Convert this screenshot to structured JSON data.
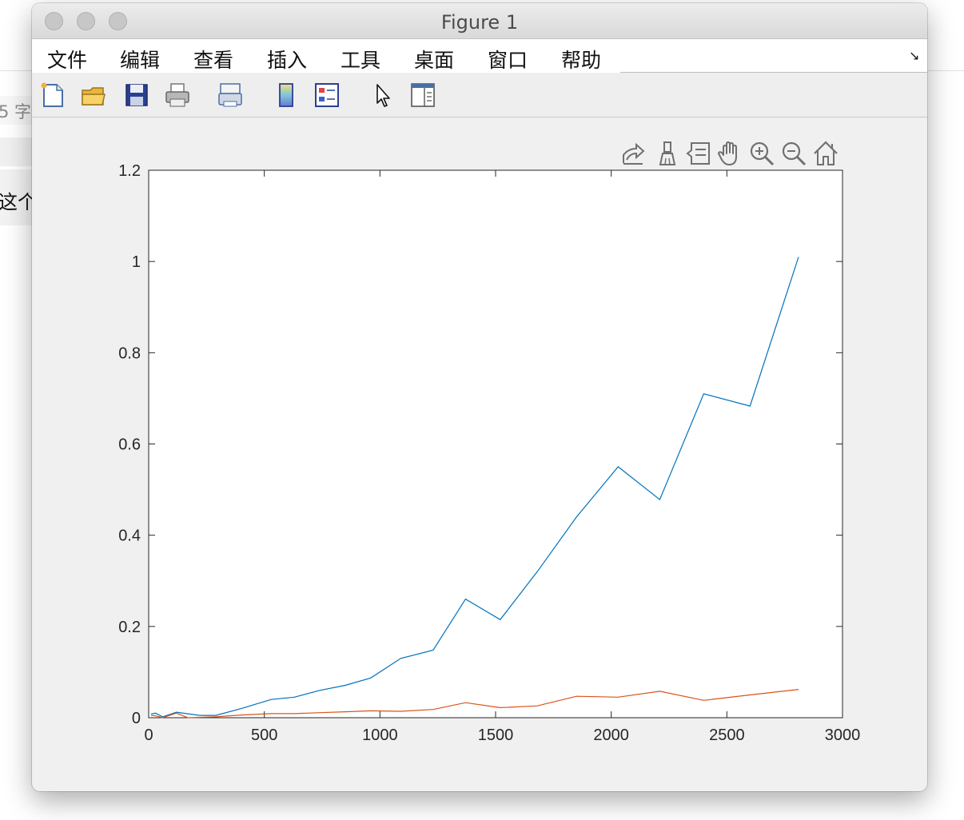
{
  "background": {
    "fragment_1": "5 字",
    "fragment_2": "这个"
  },
  "window": {
    "title": "Figure 1"
  },
  "menu": [
    "文件",
    "编辑",
    "查看",
    "插入",
    "工具",
    "桌面",
    "窗口",
    "帮助"
  ],
  "toolbar_icons": [
    "new-figure-icon",
    "open-file-icon",
    "save-icon",
    "print-icon",
    "link-plot-icon",
    "colorbar-icon",
    "legend-icon",
    "edit-plot-icon",
    "property-inspector-icon"
  ],
  "axes_toolbar_icons": [
    "export-icon",
    "brush-icon",
    "data-tips-icon",
    "pan-icon",
    "zoom-in-icon",
    "zoom-out-icon",
    "home-icon"
  ],
  "colors": {
    "series_1": "#0072BD",
    "series_2": "#D95319"
  },
  "chart_data": {
    "type": "line",
    "xlim": [
      0,
      3000
    ],
    "ylim": [
      0,
      1.2
    ],
    "xticks": [
      0,
      500,
      1000,
      1500,
      2000,
      2500,
      3000
    ],
    "yticks": [
      0,
      0.2,
      0.4,
      0.6,
      0.8,
      1,
      1.2
    ],
    "xtick_labels": [
      "0",
      "500",
      "1000",
      "1500",
      "2000",
      "2500",
      "3000"
    ],
    "ytick_labels": [
      "0",
      "0.2",
      "0.4",
      "0.6",
      "0.8",
      "1",
      "1.2"
    ],
    "grid": false,
    "series": [
      {
        "color": "#0072BD",
        "x": [
          10,
          30,
          60,
          120,
          220,
          290,
          400,
          530,
          630,
          740,
          850,
          960,
          1090,
          1230,
          1370,
          1520,
          1680,
          1850,
          2030,
          2210,
          2400,
          2600,
          2810
        ],
        "y": [
          0.008,
          0.01,
          0.002,
          0.012,
          0.005,
          0.005,
          0.02,
          0.04,
          0.045,
          0.06,
          0.071,
          0.087,
          0.13,
          0.148,
          0.26,
          0.215,
          0.32,
          0.44,
          0.55,
          0.478,
          0.71,
          0.683,
          1.01
        ]
      },
      {
        "color": "#D95319",
        "x": [
          10,
          30,
          60,
          120,
          170,
          290,
          400,
          530,
          630,
          740,
          850,
          960,
          1090,
          1230,
          1370,
          1520,
          1680,
          1850,
          2030,
          2210,
          2400,
          2600,
          2810
        ],
        "y": [
          0.005,
          0.004,
          0.0,
          0.01,
          0.0,
          0.002,
          0.006,
          0.009,
          0.009,
          0.011,
          0.013,
          0.015,
          0.014,
          0.018,
          0.033,
          0.022,
          0.026,
          0.047,
          0.045,
          0.058,
          0.038,
          0.05,
          0.062
        ]
      }
    ]
  }
}
